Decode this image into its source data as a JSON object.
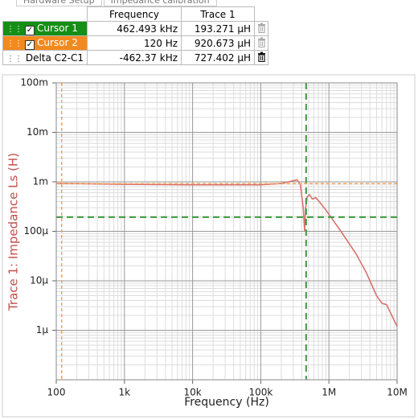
{
  "tabs": [
    "Hardware Setup",
    "Impedance calibration"
  ],
  "cursor_table": {
    "columns": [
      "Frequency",
      "Trace 1"
    ],
    "rows": [
      {
        "name": "Cursor 1",
        "frequency": "462.493 kHz",
        "trace": "193.271 µH",
        "color": "#158f15"
      },
      {
        "name": "Cursor 2",
        "frequency": "120 Hz",
        "trace": "920.673 µH",
        "color": "#f28a1e"
      },
      {
        "name": "Delta C2-C1",
        "frequency": "-462.37 kHz",
        "trace": "727.402 µH"
      }
    ]
  },
  "chart_data": {
    "type": "line",
    "xlabel": "Frequency (Hz)",
    "ylabel": "Trace 1: Impedance Ls (H)",
    "xscale": "log",
    "yscale": "log",
    "grid": true,
    "xlim": [
      100,
      10000000
    ],
    "ylim": [
      1e-07,
      0.1
    ],
    "xticks": [
      {
        "value": 100,
        "label": "100"
      },
      {
        "value": 1000,
        "label": "1k"
      },
      {
        "value": 10000,
        "label": "10k"
      },
      {
        "value": 100000,
        "label": "100k"
      },
      {
        "value": 1000000,
        "label": "1M"
      },
      {
        "value": 10000000,
        "label": "10M"
      }
    ],
    "yticks": [
      {
        "value": 1e-06,
        "label": "1µ"
      },
      {
        "value": 1e-05,
        "label": "10µ"
      },
      {
        "value": 0.0001,
        "label": "100µ"
      },
      {
        "value": 0.001,
        "label": "1m"
      },
      {
        "value": 0.01,
        "label": "10m"
      },
      {
        "value": 0.1,
        "label": "100m"
      }
    ],
    "series": [
      {
        "name": "Trace 1",
        "color": "#d9726e",
        "x": [
          100,
          200,
          1000,
          10000,
          100000,
          200000,
          300000,
          340000,
          380000,
          420000,
          440000,
          455000,
          480000,
          520000,
          570000,
          640000,
          720000,
          900000,
          1500000,
          2500000,
          3500000,
          5000000,
          6000000,
          7000000,
          10000000
        ],
        "values": [
          0.00093,
          0.00092,
          0.00089,
          0.00087,
          0.00087,
          0.00093,
          0.00105,
          0.0011,
          0.0009,
          0.0003,
          0.0001,
          0.0003,
          0.0005,
          0.00055,
          0.00045,
          0.00048,
          0.0004,
          0.00027,
          0.0001,
          3.5e-05,
          1.5e-05,
          5e-06,
          3.5e-06,
          3.3e-06,
          1.2e-06
        ]
      }
    ],
    "cursors": [
      {
        "color": "#3a9a3a",
        "x": 462493,
        "y": 0.000193271
      },
      {
        "color": "#f2a35a",
        "x": 120,
        "y": 0.000920673
      }
    ]
  }
}
